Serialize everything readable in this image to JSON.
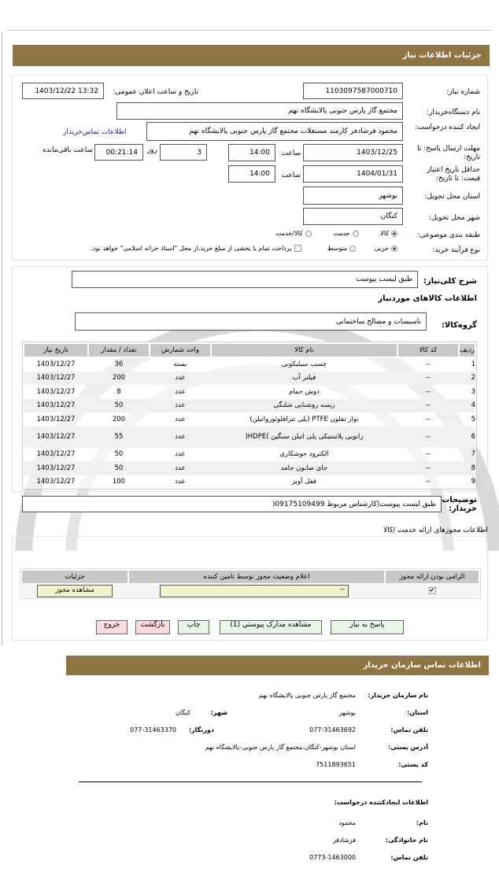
{
  "header": {
    "title": "جزئیات اطلاعات نیاز"
  },
  "form": {
    "need_number_label": "شماره نیاز:",
    "need_number": "1103097587000710",
    "announce_label": "تاریخ و ساعت اعلان عمومی:",
    "announce_value": "1403/12/22 13:32",
    "buyer_label": "نام دستگاه‌خریدار:",
    "buyer_value": "مجتمع گاز پارس جنوبی پالایشگاه نهم",
    "creator_label": "ایجاد کننده درخواست:",
    "creator_value": "محمود فرشادفر کارمند مستغلات مجتمع گاز پارس جنوبی پالایشگاه نهم",
    "contact_link": "اطلاعات تماس‌خریدار",
    "deadline_label": "مهلت ارسال پاسخ: تا تاریخ:",
    "deadline_date": "1403/12/25",
    "time_label": "ساعت",
    "deadline_time": "14:00",
    "days_value": "3",
    "days_label": "روز",
    "remaining_value": "00:21:14",
    "remaining_label": "ساعت باقی‌مانده",
    "validity_label": "حداقل تاریخ اعتبار قیمت: تا تاریخ:",
    "validity_date": "1404/01/31",
    "validity_time": "14:00",
    "province_label": "استان محل تحویل:",
    "province_value": "بوشهر",
    "city_label": "شهر محل تحویل:",
    "city_value": "کنگان",
    "category_label": "طبقه بندی موضوعی:",
    "category_options": [
      "کالا",
      "خدمت",
      "کالا/خدمت"
    ],
    "category_selected": "کالا",
    "process_label": "نوع فرآیند خرید:",
    "process_options": [
      "جزیی",
      "متوسط"
    ],
    "process_selected": "جزیی",
    "treasury_note": "پرداخت تمام یا بخشی از مبلغ خرید،از محل \"اسناد خزانه اسلامی\" خواهد بود."
  },
  "goods": {
    "desc_label": "شرح کلی‌نیاز:",
    "desc_value": "طبق لیست پیوست",
    "section_title": "اطلاعات کالاهای موردنیاز",
    "group_label": "گروه‌کالا:",
    "group_value": "تاسیسات و مصالح ساختمانی",
    "columns": [
      "ردیف",
      "کد کالا",
      "نام کالا",
      "واحد شمارش",
      "تعداد / مقدار",
      "تاریخ نیاز"
    ],
    "rows": [
      [
        "1",
        "--",
        "چسب سیلیکونی",
        "بسته",
        "36",
        "1403/12/27"
      ],
      [
        "2",
        "--",
        "فیلتر آب",
        "عدد",
        "200",
        "1403/12/27"
      ],
      [
        "3",
        "--",
        "دوش حمام",
        "عدد",
        "8",
        "1403/12/27"
      ],
      [
        "4",
        "--",
        "ریسه روشنایی شلنگی",
        "عدد",
        "50",
        "1403/12/27"
      ],
      [
        "5",
        "--",
        "نوار تفلون PTFE (پلی تترافلوئورواتیلن)",
        "عدد",
        "200",
        "1403/12/27"
      ],
      [
        "6",
        "--",
        "زانویی پلاستیکی پلی اتیلن سنگین )HDPE(",
        "عدد",
        "55",
        "1403/12/27"
      ],
      [
        "7",
        "--",
        "الکترود جوشکاری",
        "عدد",
        "50",
        "1403/12/27"
      ],
      [
        "8",
        "--",
        "جای صابون جامد",
        "عدد",
        "50",
        "1403/12/27"
      ],
      [
        "9",
        "--",
        "قفل آویز",
        "عدد",
        "100",
        "1403/12/27"
      ]
    ],
    "notes_label": "توضیحات خریدار:",
    "notes_value": "طبق لیست پیوست(کارشناس مربوط 09175109499("
  },
  "license": {
    "title": "اطلاعات مجوزهای ارائه خدمت /کالا",
    "columns": [
      "الزامی بودن ارائه مجوز",
      "اعلام وضعیت مجوز توسط تامین کننده",
      "جزئیات"
    ],
    "status_value": "--",
    "view_button": "مشاهده مجوز"
  },
  "actions": {
    "reply": "پاسخ به نیاز",
    "attachments": "مشاهده مدارک پیوستي (1)",
    "print": "چاپ",
    "back": "بازگشت",
    "exit": "خروج"
  },
  "contact": {
    "title": "اطلاعات تماس سازمان خریدار",
    "org_label": "نام سازمان خریدار:",
    "org_value": "مجتمع گاز پارس جنوبی پالایشگاه نهم",
    "province_label": "استان:",
    "province_value": "بوشهر",
    "city_label": "شهر:",
    "city_value": "کنگان",
    "phone_label": "تلفن تماس:",
    "phone_value": "077-31463692",
    "fax_label": "دورنگار:",
    "fax_value": "077-31463370",
    "address_label": "آدرس پستی:",
    "address_value": "استان بوشهر-کنگان.مجتمع گاز پارس جنوبی-پالایشگاه نهم",
    "postal_label": "کد پستی:",
    "postal_value": "7511893651",
    "creator_title": "اطلاعات ایجادکننده درخواست:",
    "name_label": "نام:",
    "name_value": "محمود",
    "family_label": "نام خانوادگی:",
    "family_value": "فرشادفر",
    "cphone_label": "تلفن تماس:",
    "cphone_value": "0773-1463000"
  }
}
